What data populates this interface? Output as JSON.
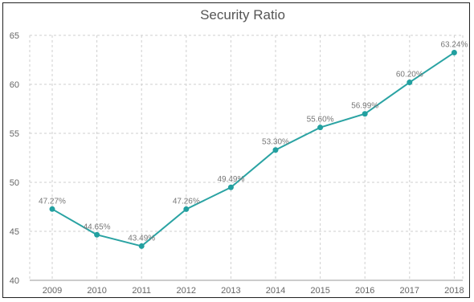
{
  "chart_data": {
    "type": "line",
    "title": "Security Ratio",
    "xlabel": "",
    "ylabel": "",
    "categories": [
      "2009",
      "2010",
      "2011",
      "2012",
      "2013",
      "2014",
      "2015",
      "2016",
      "2017",
      "2018"
    ],
    "series": [
      {
        "values": [
          47.27,
          44.65,
          43.49,
          47.26,
          49.49,
          53.3,
          55.6,
          56.99,
          60.2,
          63.24
        ],
        "labels": [
          "47.27%",
          "44.65%",
          "43.49%",
          "47.26%",
          "49.49%",
          "53.30%",
          "55.60%",
          "56.99%",
          "60.20%",
          "63.24%"
        ],
        "color": "#2aa3a3"
      }
    ],
    "ylim": [
      40,
      65
    ],
    "yticks": [
      40,
      45,
      50,
      55,
      60,
      65
    ],
    "grid": true,
    "legend": "none"
  }
}
